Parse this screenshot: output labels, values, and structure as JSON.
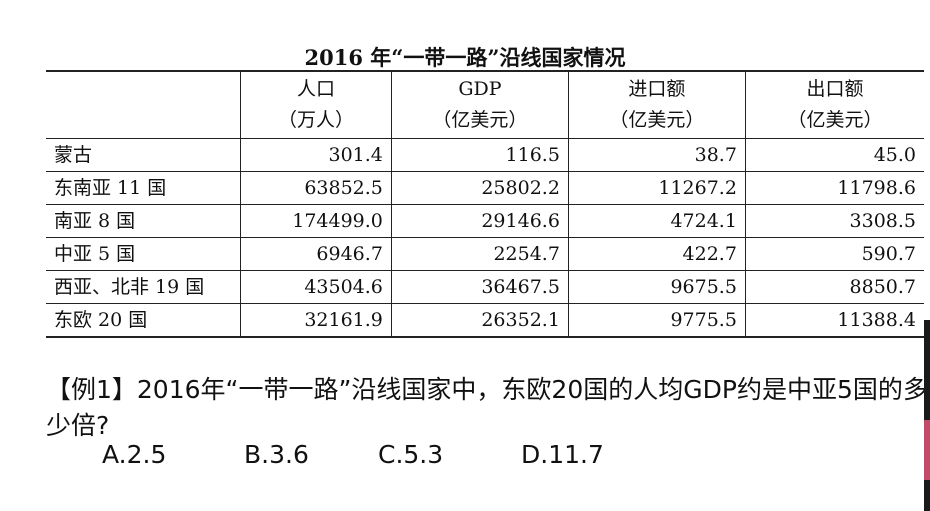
{
  "table": {
    "title": "2016 年“一带一路”沿线国家情况",
    "headers": [
      {
        "line1": "",
        "line2": ""
      },
      {
        "line1": "人口",
        "line2": "（万人）"
      },
      {
        "line1": "GDP",
        "line2": "（亿美元）"
      },
      {
        "line1": "进口额",
        "line2": "（亿美元）"
      },
      {
        "line1": "出口额",
        "line2": "（亿美元）"
      }
    ],
    "rows": [
      {
        "region": "蒙古",
        "population": "301.4",
        "gdp": "116.5",
        "imports": "38.7",
        "exports": "45.0"
      },
      {
        "region": "东南亚 11 国",
        "population": "63852.5",
        "gdp": "25802.2",
        "imports": "11267.2",
        "exports": "11798.6"
      },
      {
        "region": "南亚 8 国",
        "population": "174499.0",
        "gdp": "29146.6",
        "imports": "4724.1",
        "exports": "3308.5"
      },
      {
        "region": "中亚 5 国",
        "population": "6946.7",
        "gdp": "2254.7",
        "imports": "422.7",
        "exports": "590.7"
      },
      {
        "region": "西亚、北非 19 国",
        "population": "43504.6",
        "gdp": "36467.5",
        "imports": "9675.5",
        "exports": "8850.7"
      },
      {
        "region": "东欧 20 国",
        "population": "32161.9",
        "gdp": "26352.1",
        "imports": "9775.5",
        "exports": "11388.4"
      }
    ]
  },
  "question": {
    "text": "【例1】2016年“一带一路”沿线国家中，东欧20国的人均GDP约是中亚5国的多少倍?",
    "options": [
      "A.2.5",
      "B.3.6",
      "C.5.3",
      "D.11.7"
    ]
  }
}
